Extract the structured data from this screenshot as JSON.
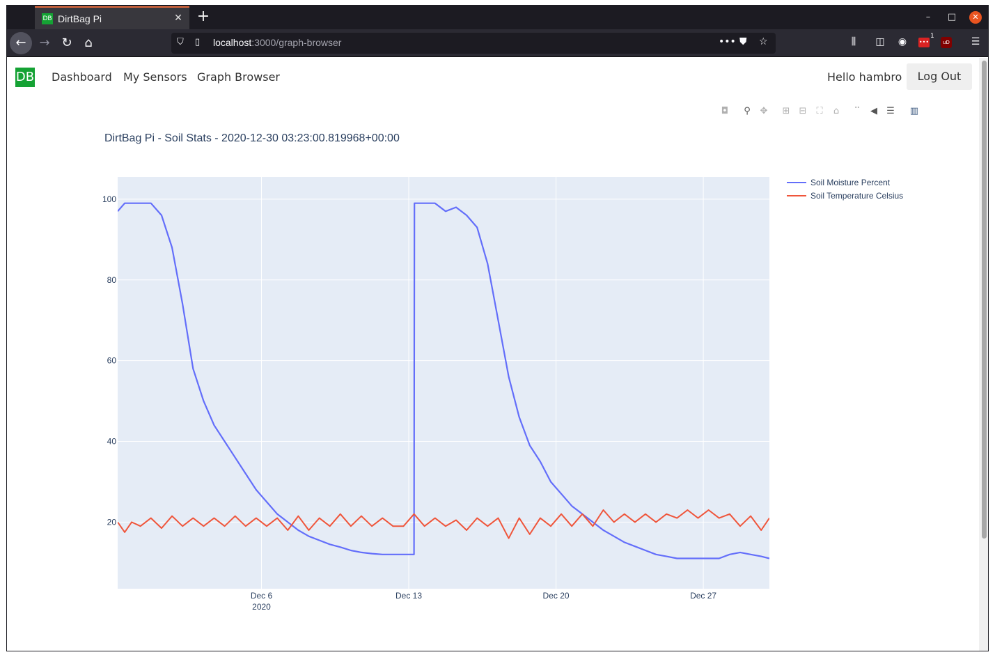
{
  "browser": {
    "tab_title": "DirtBag Pi",
    "favicon_text": "DB",
    "url_host": "localhost",
    "url_path": ":3000/graph-browser",
    "ext_badge": "1",
    "ext_ub_text": "uD"
  },
  "app": {
    "brand": "DB",
    "nav": [
      "Dashboard",
      "My Sensors",
      "Graph Browser"
    ],
    "greeting": "Hello hambro",
    "logout_label": "Log Out"
  },
  "chart_data": {
    "type": "line",
    "title": "DirtBag Pi - Soil Stats - 2020-12-30 03:23:00.819968+00:00",
    "x_ticks": [
      {
        "date": "2020-12-06",
        "label": "Dec 6",
        "sublabel": "2020"
      },
      {
        "date": "2020-12-13",
        "label": "Dec 13",
        "sublabel": ""
      },
      {
        "date": "2020-12-20",
        "label": "Dec 20",
        "sublabel": ""
      },
      {
        "date": "2020-12-27",
        "label": "Dec 27",
        "sublabel": ""
      }
    ],
    "xlim": [
      "2020-11-29T04:00",
      "2020-12-30T03:23"
    ],
    "ylim": [
      3.5,
      105.5
    ],
    "y_ticks": [
      20,
      40,
      60,
      80,
      100
    ],
    "grid": true,
    "legend_position": "top-right",
    "colors": {
      "plot_bg": "#e5ecf6",
      "moisture": "#636efa",
      "temperature": "#ef553b"
    },
    "series": [
      {
        "name": "Soil Moisture Percent",
        "color": "#636efa",
        "points": [
          [
            "2020-11-29T04:00",
            97
          ],
          [
            "2020-11-29T12:00",
            99
          ],
          [
            "2020-11-30T06:00",
            99
          ],
          [
            "2020-11-30T18:00",
            99
          ],
          [
            "2020-12-01T06:00",
            96
          ],
          [
            "2020-12-01T18:00",
            88
          ],
          [
            "2020-12-02T06:00",
            74
          ],
          [
            "2020-12-02T18:00",
            58
          ],
          [
            "2020-12-03T06:00",
            50
          ],
          [
            "2020-12-03T18:00",
            44
          ],
          [
            "2020-12-04T06:00",
            40
          ],
          [
            "2020-12-04T18:00",
            36
          ],
          [
            "2020-12-05T06:00",
            32
          ],
          [
            "2020-12-05T18:00",
            28
          ],
          [
            "2020-12-06T06:00",
            25
          ],
          [
            "2020-12-06T18:00",
            22
          ],
          [
            "2020-12-07T06:00",
            20
          ],
          [
            "2020-12-07T18:00",
            18
          ],
          [
            "2020-12-08T06:00",
            16.5
          ],
          [
            "2020-12-08T18:00",
            15.5
          ],
          [
            "2020-12-09T06:00",
            14.5
          ],
          [
            "2020-12-09T18:00",
            13.8
          ],
          [
            "2020-12-10T06:00",
            13
          ],
          [
            "2020-12-10T18:00",
            12.5
          ],
          [
            "2020-12-11T06:00",
            12.2
          ],
          [
            "2020-12-11T18:00",
            12
          ],
          [
            "2020-12-12T06:00",
            12
          ],
          [
            "2020-12-12T18:00",
            12
          ],
          [
            "2020-12-13T06:00",
            12
          ],
          [
            "2020-12-13T06:30",
            99
          ],
          [
            "2020-12-13T18:00",
            99
          ],
          [
            "2020-12-14T06:00",
            99
          ],
          [
            "2020-12-14T18:00",
            97
          ],
          [
            "2020-12-15T06:00",
            98
          ],
          [
            "2020-12-15T18:00",
            96
          ],
          [
            "2020-12-16T06:00",
            93
          ],
          [
            "2020-12-16T18:00",
            84
          ],
          [
            "2020-12-17T06:00",
            70
          ],
          [
            "2020-12-17T18:00",
            56
          ],
          [
            "2020-12-18T06:00",
            46
          ],
          [
            "2020-12-18T18:00",
            39
          ],
          [
            "2020-12-19T06:00",
            35
          ],
          [
            "2020-12-19T18:00",
            30
          ],
          [
            "2020-12-20T06:00",
            27
          ],
          [
            "2020-12-20T18:00",
            24
          ],
          [
            "2020-12-21T06:00",
            22
          ],
          [
            "2020-12-21T18:00",
            20
          ],
          [
            "2020-12-22T06:00",
            18
          ],
          [
            "2020-12-22T18:00",
            16.5
          ],
          [
            "2020-12-23T06:00",
            15
          ],
          [
            "2020-12-23T18:00",
            14
          ],
          [
            "2020-12-24T06:00",
            13
          ],
          [
            "2020-12-24T18:00",
            12
          ],
          [
            "2020-12-25T06:00",
            11.5
          ],
          [
            "2020-12-25T18:00",
            11
          ],
          [
            "2020-12-26T06:00",
            11
          ],
          [
            "2020-12-26T18:00",
            11
          ],
          [
            "2020-12-27T06:00",
            11
          ],
          [
            "2020-12-27T18:00",
            11
          ],
          [
            "2020-12-28T06:00",
            12
          ],
          [
            "2020-12-28T18:00",
            12.5
          ],
          [
            "2020-12-29T06:00",
            12
          ],
          [
            "2020-12-29T18:00",
            11.5
          ],
          [
            "2020-12-30T03:23",
            11
          ]
        ]
      },
      {
        "name": "Soil Temperature Celsius",
        "color": "#ef553b",
        "points": [
          [
            "2020-11-29T04:00",
            20
          ],
          [
            "2020-11-29T12:00",
            17.5
          ],
          [
            "2020-11-29T20:00",
            20
          ],
          [
            "2020-11-30T06:00",
            19
          ],
          [
            "2020-11-30T18:00",
            21
          ],
          [
            "2020-12-01T06:00",
            18.5
          ],
          [
            "2020-12-01T18:00",
            21.5
          ],
          [
            "2020-12-02T06:00",
            19
          ],
          [
            "2020-12-02T18:00",
            21
          ],
          [
            "2020-12-03T06:00",
            19
          ],
          [
            "2020-12-03T18:00",
            21
          ],
          [
            "2020-12-04T06:00",
            19
          ],
          [
            "2020-12-04T18:00",
            21.5
          ],
          [
            "2020-12-05T06:00",
            19
          ],
          [
            "2020-12-05T18:00",
            21
          ],
          [
            "2020-12-06T06:00",
            19
          ],
          [
            "2020-12-06T18:00",
            21
          ],
          [
            "2020-12-07T06:00",
            18
          ],
          [
            "2020-12-07T18:00",
            21.5
          ],
          [
            "2020-12-08T06:00",
            18
          ],
          [
            "2020-12-08T18:00",
            21
          ],
          [
            "2020-12-09T06:00",
            19
          ],
          [
            "2020-12-09T18:00",
            22
          ],
          [
            "2020-12-10T06:00",
            19
          ],
          [
            "2020-12-10T18:00",
            21.5
          ],
          [
            "2020-12-11T06:00",
            19
          ],
          [
            "2020-12-11T18:00",
            21
          ],
          [
            "2020-12-12T06:00",
            19
          ],
          [
            "2020-12-12T18:00",
            19
          ],
          [
            "2020-12-13T06:00",
            22
          ],
          [
            "2020-12-13T18:00",
            19
          ],
          [
            "2020-12-14T06:00",
            21
          ],
          [
            "2020-12-14T18:00",
            19
          ],
          [
            "2020-12-15T06:00",
            20.5
          ],
          [
            "2020-12-15T18:00",
            18
          ],
          [
            "2020-12-16T06:00",
            21
          ],
          [
            "2020-12-16T18:00",
            19
          ],
          [
            "2020-12-17T06:00",
            21
          ],
          [
            "2020-12-17T18:00",
            16
          ],
          [
            "2020-12-18T06:00",
            21
          ],
          [
            "2020-12-18T18:00",
            17
          ],
          [
            "2020-12-19T06:00",
            21
          ],
          [
            "2020-12-19T18:00",
            19
          ],
          [
            "2020-12-20T06:00",
            22
          ],
          [
            "2020-12-20T18:00",
            19
          ],
          [
            "2020-12-21T06:00",
            22
          ],
          [
            "2020-12-21T18:00",
            19
          ],
          [
            "2020-12-22T06:00",
            23
          ],
          [
            "2020-12-22T18:00",
            20
          ],
          [
            "2020-12-23T06:00",
            22
          ],
          [
            "2020-12-23T18:00",
            20
          ],
          [
            "2020-12-24T06:00",
            22
          ],
          [
            "2020-12-24T18:00",
            20
          ],
          [
            "2020-12-25T06:00",
            22
          ],
          [
            "2020-12-25T18:00",
            21
          ],
          [
            "2020-12-26T06:00",
            23
          ],
          [
            "2020-12-26T18:00",
            21
          ],
          [
            "2020-12-27T06:00",
            23
          ],
          [
            "2020-12-27T18:00",
            21
          ],
          [
            "2020-12-28T06:00",
            22
          ],
          [
            "2020-12-28T18:00",
            19
          ],
          [
            "2020-12-29T06:00",
            21.5
          ],
          [
            "2020-12-29T18:00",
            18
          ],
          [
            "2020-12-30T03:23",
            21
          ]
        ]
      }
    ]
  }
}
